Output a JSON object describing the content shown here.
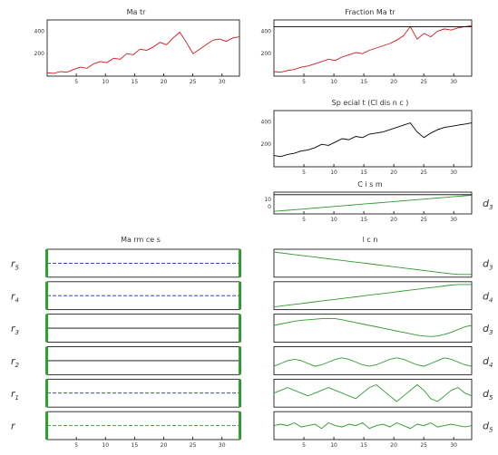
{
  "colors": {
    "series_red": "#d01a1a",
    "series_black": "#000000",
    "series_green": "#2e9a2e",
    "series_blue": "#1f2fb0",
    "marker_green": "#2ea02e",
    "axis": "#000000"
  },
  "chart_data": [
    {
      "type": "line",
      "title": "Ma tr",
      "x": [
        1,
        2,
        3,
        4,
        5,
        6,
        7,
        8,
        9,
        10,
        11,
        12,
        13,
        14,
        15,
        16,
        17,
        18,
        19,
        20,
        21,
        22,
        23,
        24,
        25,
        26,
        27,
        28,
        29,
        30
      ],
      "xticks": [
        "5",
        "10",
        "15",
        "20",
        "25",
        "30"
      ],
      "ylim": [
        0,
        500
      ],
      "yticks": [
        "200",
        "400"
      ],
      "series": [
        {
          "color": "red",
          "values": [
            30,
            25,
            40,
            35,
            60,
            80,
            70,
            110,
            130,
            120,
            160,
            150,
            200,
            190,
            240,
            230,
            260,
            300,
            280,
            340,
            390,
            300,
            200,
            240,
            280,
            320,
            330,
            310,
            340,
            350
          ]
        }
      ]
    },
    {
      "type": "line",
      "title": "Fraction Ma tr",
      "x": [
        1,
        2,
        3,
        4,
        5,
        6,
        7,
        8,
        9,
        10,
        11,
        12,
        13,
        14,
        15,
        16,
        17,
        18,
        19,
        20,
        21,
        22,
        23,
        24,
        25,
        26,
        27,
        28,
        29,
        30
      ],
      "xticks": [
        "5",
        "10",
        "15",
        "20",
        "25",
        "30"
      ],
      "ylim": [
        0,
        500
      ],
      "yticks": [
        "200",
        "400"
      ],
      "series": [
        {
          "color": "red",
          "values": [
            40,
            35,
            50,
            60,
            80,
            90,
            110,
            130,
            150,
            140,
            170,
            190,
            210,
            200,
            230,
            250,
            270,
            290,
            320,
            360,
            440,
            330,
            380,
            350,
            400,
            420,
            410,
            430,
            440,
            450
          ]
        },
        {
          "color": "black",
          "values": [
            440,
            440,
            440,
            440,
            440,
            440,
            440,
            440,
            440,
            440,
            440,
            440,
            440,
            440,
            440,
            440,
            440,
            440,
            440,
            440,
            440,
            440,
            440,
            440,
            440,
            440,
            440,
            440,
            440,
            440
          ]
        }
      ]
    },
    {
      "type": "line",
      "title": "Sp ecial t (Cl dis n c )",
      "x": [
        1,
        2,
        3,
        4,
        5,
        6,
        7,
        8,
        9,
        10,
        11,
        12,
        13,
        14,
        15,
        16,
        17,
        18,
        19,
        20,
        21,
        22,
        23,
        24,
        25,
        26,
        27,
        28,
        29,
        30
      ],
      "xticks": [
        "5",
        "10",
        "15",
        "20",
        "25",
        "30"
      ],
      "ylim": [
        0,
        500
      ],
      "yticks": [
        "200",
        "400"
      ],
      "series": [
        {
          "color": "black",
          "values": [
            100,
            90,
            110,
            120,
            140,
            150,
            170,
            200,
            190,
            220,
            250,
            240,
            270,
            260,
            290,
            300,
            310,
            330,
            350,
            370,
            390,
            310,
            260,
            300,
            330,
            350,
            360,
            370,
            380,
            390
          ]
        }
      ]
    },
    {
      "type": "line",
      "title": "C i s m",
      "x": [
        1,
        2,
        3,
        4,
        5,
        6,
        7,
        8,
        9,
        10,
        11,
        12,
        13,
        14,
        15,
        16,
        17,
        18,
        19,
        20,
        21,
        22,
        23,
        24,
        25,
        26,
        27,
        28,
        29,
        30
      ],
      "xticks": [
        "5",
        "10",
        "15",
        "20",
        "25",
        "30"
      ],
      "yticks": [
        "10",
        "0"
      ],
      "side_label": "d3",
      "series": [
        {
          "color": "green",
          "values": [
            2,
            2.3,
            2.6,
            2.9,
            3.2,
            3.5,
            3.8,
            4.1,
            4.4,
            4.7,
            5.0,
            5.3,
            5.6,
            5.9,
            6.2,
            6.5,
            6.8,
            7.1,
            7.4,
            7.7,
            8.0,
            8.3,
            8.6,
            8.9,
            9.2,
            9.5,
            9.8,
            10.1,
            10.4,
            10.7
          ]
        },
        {
          "color": "black",
          "values": [
            11,
            11,
            11,
            11,
            11,
            11,
            11,
            11,
            11,
            11,
            11,
            11,
            11,
            11,
            11,
            11,
            11,
            11,
            11,
            11,
            11,
            11,
            11,
            11,
            11,
            11,
            11,
            11,
            11,
            11
          ]
        }
      ]
    },
    {
      "type": "line",
      "title": "Ma rm ce s",
      "xticks": [
        "5",
        "10",
        "15",
        "20",
        "25",
        "30"
      ],
      "row_labels": [
        "r5",
        "r4",
        "r3",
        "r2",
        "r1",
        "r"
      ],
      "rows": [
        {
          "color": "blue",
          "dashed": true,
          "values": [
            0.5,
            0.5,
            0.5,
            0.5,
            0.5,
            0.5,
            0.5,
            0.5,
            0.5,
            0.5,
            0.5,
            0.5,
            0.5,
            0.5,
            0.5,
            0.5,
            0.5,
            0.5,
            0.5,
            0.5,
            0.5,
            0.5,
            0.5,
            0.5,
            0.5,
            0.5,
            0.5,
            0.5,
            0.5,
            0.5
          ]
        },
        {
          "color": "blue",
          "dashed": true,
          "values": [
            0.5,
            0.5,
            0.5,
            0.5,
            0.5,
            0.5,
            0.5,
            0.5,
            0.5,
            0.5,
            0.5,
            0.5,
            0.5,
            0.5,
            0.5,
            0.5,
            0.5,
            0.5,
            0.5,
            0.5,
            0.5,
            0.5,
            0.5,
            0.5,
            0.5,
            0.5,
            0.5,
            0.5,
            0.5,
            0.5
          ]
        },
        {
          "color": "black",
          "dashed": false,
          "values": [
            0.5,
            0.5,
            0.5,
            0.5,
            0.5,
            0.5,
            0.5,
            0.5,
            0.5,
            0.5,
            0.5,
            0.5,
            0.5,
            0.5,
            0.5,
            0.5,
            0.5,
            0.5,
            0.5,
            0.5,
            0.5,
            0.5,
            0.5,
            0.5,
            0.5,
            0.5,
            0.5,
            0.5,
            0.5,
            0.5
          ]
        },
        {
          "color": "black",
          "dashed": false,
          "values": [
            0.5,
            0.5,
            0.5,
            0.5,
            0.5,
            0.5,
            0.5,
            0.5,
            0.5,
            0.5,
            0.5,
            0.5,
            0.5,
            0.5,
            0.5,
            0.5,
            0.5,
            0.5,
            0.5,
            0.5,
            0.5,
            0.5,
            0.5,
            0.5,
            0.5,
            0.5,
            0.5,
            0.5,
            0.5,
            0.5
          ]
        },
        {
          "color": "blue",
          "dashed": true,
          "values": [
            0.5,
            0.5,
            0.5,
            0.5,
            0.5,
            0.5,
            0.5,
            0.5,
            0.5,
            0.5,
            0.5,
            0.5,
            0.5,
            0.5,
            0.5,
            0.5,
            0.5,
            0.5,
            0.5,
            0.5,
            0.5,
            0.5,
            0.5,
            0.5,
            0.5,
            0.5,
            0.5,
            0.5,
            0.5,
            0.5
          ]
        },
        {
          "color": "green",
          "dashed": true,
          "values": [
            0.5,
            0.5,
            0.5,
            0.5,
            0.5,
            0.5,
            0.5,
            0.5,
            0.5,
            0.5,
            0.5,
            0.5,
            0.5,
            0.5,
            0.5,
            0.5,
            0.5,
            0.5,
            0.5,
            0.5,
            0.5,
            0.5,
            0.5,
            0.5,
            0.5,
            0.5,
            0.5,
            0.5,
            0.5,
            0.5
          ]
        }
      ]
    },
    {
      "type": "line",
      "title": "l c n",
      "xticks": [
        "5",
        "10",
        "15",
        "20",
        "25",
        "30"
      ],
      "row_labels": [
        "d3",
        "d4",
        "d3",
        "d4",
        "d5",
        "d5"
      ],
      "rows": [
        {
          "color": "green",
          "values": [
            0.9,
            0.87,
            0.84,
            0.81,
            0.78,
            0.75,
            0.72,
            0.69,
            0.66,
            0.63,
            0.6,
            0.57,
            0.54,
            0.51,
            0.48,
            0.45,
            0.42,
            0.39,
            0.36,
            0.33,
            0.3,
            0.27,
            0.24,
            0.21,
            0.18,
            0.15,
            0.12,
            0.1,
            0.1,
            0.1
          ]
        },
        {
          "color": "green",
          "values": [
            0.1,
            0.13,
            0.16,
            0.19,
            0.22,
            0.25,
            0.28,
            0.31,
            0.34,
            0.37,
            0.4,
            0.43,
            0.46,
            0.49,
            0.52,
            0.55,
            0.58,
            0.61,
            0.64,
            0.67,
            0.7,
            0.73,
            0.76,
            0.79,
            0.82,
            0.85,
            0.88,
            0.9,
            0.9,
            0.9
          ]
        },
        {
          "color": "green",
          "values": [
            0.6,
            0.65,
            0.7,
            0.75,
            0.78,
            0.8,
            0.82,
            0.84,
            0.85,
            0.84,
            0.8,
            0.75,
            0.7,
            0.65,
            0.6,
            0.55,
            0.5,
            0.45,
            0.4,
            0.35,
            0.3,
            0.25,
            0.22,
            0.2,
            0.22,
            0.28,
            0.35,
            0.45,
            0.55,
            0.6
          ]
        },
        {
          "color": "green",
          "values": [
            0.3,
            0.4,
            0.5,
            0.55,
            0.5,
            0.4,
            0.3,
            0.35,
            0.45,
            0.55,
            0.6,
            0.55,
            0.45,
            0.35,
            0.3,
            0.35,
            0.45,
            0.55,
            0.6,
            0.55,
            0.45,
            0.35,
            0.3,
            0.4,
            0.5,
            0.6,
            0.55,
            0.45,
            0.35,
            0.3
          ]
        },
        {
          "color": "green",
          "values": [
            0.5,
            0.6,
            0.7,
            0.6,
            0.5,
            0.4,
            0.5,
            0.6,
            0.7,
            0.6,
            0.5,
            0.4,
            0.3,
            0.5,
            0.7,
            0.8,
            0.6,
            0.4,
            0.2,
            0.4,
            0.6,
            0.8,
            0.6,
            0.3,
            0.2,
            0.4,
            0.6,
            0.7,
            0.5,
            0.4
          ]
        },
        {
          "color": "green",
          "values": [
            0.5,
            0.55,
            0.5,
            0.6,
            0.45,
            0.5,
            0.55,
            0.4,
            0.6,
            0.5,
            0.45,
            0.55,
            0.5,
            0.6,
            0.4,
            0.5,
            0.55,
            0.45,
            0.6,
            0.5,
            0.4,
            0.55,
            0.5,
            0.6,
            0.45,
            0.5,
            0.55,
            0.5,
            0.45,
            0.5
          ]
        }
      ]
    }
  ]
}
